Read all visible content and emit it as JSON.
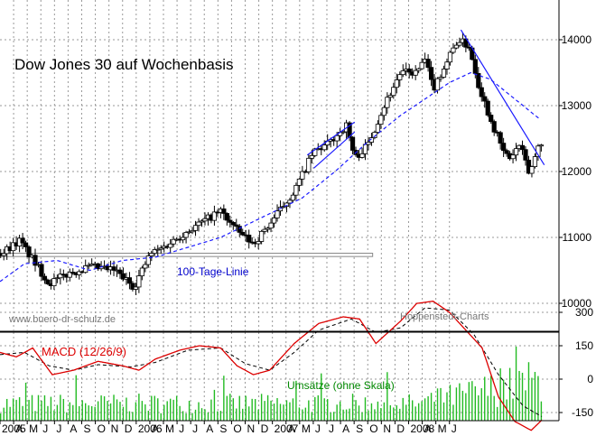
{
  "chart_data": [
    {
      "type": "candlestick",
      "title": "Dow Jones 30 auf Wochenbasis",
      "xlabel": "",
      "ylabel": "",
      "ylim": [
        9750,
        14500
      ],
      "yticks": [
        10000,
        11000,
        12000,
        13000,
        14000
      ],
      "grid": true,
      "x_tick_labels": [
        "2005",
        "A",
        "M",
        "J",
        "J",
        "A",
        "S",
        "O",
        "N",
        "D",
        "2006",
        "A",
        "M",
        "J",
        "J",
        "A",
        "S",
        "O",
        "N",
        "D",
        "2007",
        "A",
        "M",
        "J",
        "J",
        "A",
        "S",
        "O",
        "N",
        "D",
        "2008",
        "A",
        "M",
        "J"
      ],
      "price_anchors": [
        [
          2005.0,
          10750
        ],
        [
          2005.12,
          10950
        ],
        [
          2005.3,
          10300
        ],
        [
          2005.42,
          10450
        ],
        [
          2005.55,
          10550
        ],
        [
          2005.7,
          10500
        ],
        [
          2005.82,
          10250
        ],
        [
          2005.92,
          10750
        ],
        [
          2006.0,
          10850
        ],
        [
          2006.15,
          11100
        ],
        [
          2006.35,
          11400
        ],
        [
          2006.45,
          11100
        ],
        [
          2006.55,
          10900
        ],
        [
          2006.65,
          11200
        ],
        [
          2006.8,
          11700
        ],
        [
          2006.92,
          12300
        ],
        [
          2007.0,
          12400
        ],
        [
          2007.12,
          12700
        ],
        [
          2007.17,
          12200
        ],
        [
          2007.25,
          12400
        ],
        [
          2007.35,
          13000
        ],
        [
          2007.45,
          13500
        ],
        [
          2007.55,
          13500
        ],
        [
          2007.6,
          13700
        ],
        [
          2007.65,
          13250
        ],
        [
          2007.72,
          13600
        ],
        [
          2007.8,
          14000
        ],
        [
          2007.87,
          13900
        ],
        [
          2007.93,
          13300
        ],
        [
          2008.0,
          12800
        ],
        [
          2008.08,
          12300
        ],
        [
          2008.12,
          12200
        ],
        [
          2008.18,
          12400
        ],
        [
          2008.24,
          11950
        ],
        [
          2008.3,
          12450
        ]
      ],
      "sma100_anchors": [
        [
          2005.0,
          10330
        ],
        [
          2005.15,
          10600
        ],
        [
          2005.35,
          10650
        ],
        [
          2005.55,
          10500
        ],
        [
          2005.75,
          10650
        ],
        [
          2005.95,
          10700
        ],
        [
          2006.15,
          10850
        ],
        [
          2006.35,
          11000
        ],
        [
          2006.6,
          11300
        ],
        [
          2006.85,
          11600
        ],
        [
          2007.05,
          12000
        ],
        [
          2007.25,
          12450
        ],
        [
          2007.45,
          12850
        ],
        [
          2007.6,
          13100
        ],
        [
          2007.75,
          13350
        ],
        [
          2007.88,
          13500
        ],
        [
          2008.0,
          13400
        ],
        [
          2008.15,
          13100
        ],
        [
          2008.3,
          12800
        ]
      ],
      "trendlines": [
        {
          "points": [
            [
              2006.88,
              12250
            ],
            [
              2007.17,
              12750
            ]
          ]
        },
        {
          "points": [
            [
              2006.92,
              12050
            ],
            [
              2007.17,
              12600
            ]
          ]
        },
        {
          "points": [
            [
              2007.82,
              14150
            ],
            [
              2008.33,
              12100
            ]
          ]
        }
      ],
      "support_band": {
        "x": [
          2005.0,
          2007.28
        ],
        "y": [
          10710,
          10760
        ]
      },
      "annotations": [
        "100-Tage-Linie",
        "www.buero-dr-schulz.de",
        "Hoppenstedt-Charts"
      ]
    },
    {
      "type": "line",
      "series": [
        {
          "name": "MACD (12/26/9)"
        }
      ],
      "ylim": [
        -260,
        420
      ],
      "yticks": [
        300,
        150,
        0,
        -150
      ],
      "grid": true,
      "macd_anchors": [
        [
          2005.0,
          120
        ],
        [
          2005.1,
          100
        ],
        [
          2005.2,
          140
        ],
        [
          2005.32,
          20
        ],
        [
          2005.45,
          40
        ],
        [
          2005.6,
          80
        ],
        [
          2005.75,
          60
        ],
        [
          2005.85,
          40
        ],
        [
          2005.95,
          90
        ],
        [
          2006.1,
          130
        ],
        [
          2006.22,
          150
        ],
        [
          2006.35,
          140
        ],
        [
          2006.45,
          60
        ],
        [
          2006.55,
          20
        ],
        [
          2006.65,
          40
        ],
        [
          2006.8,
          160
        ],
        [
          2006.95,
          250
        ],
        [
          2007.1,
          280
        ],
        [
          2007.2,
          270
        ],
        [
          2007.3,
          160
        ],
        [
          2007.45,
          260
        ],
        [
          2007.55,
          340
        ],
        [
          2007.65,
          350
        ],
        [
          2007.75,
          300
        ],
        [
          2007.85,
          220
        ],
        [
          2007.95,
          140
        ],
        [
          2008.05,
          -80
        ],
        [
          2008.15,
          -190
        ],
        [
          2008.25,
          -230
        ],
        [
          2008.32,
          -180
        ]
      ],
      "signal_anchors": [
        [
          2005.0,
          110
        ],
        [
          2005.15,
          120
        ],
        [
          2005.3,
          60
        ],
        [
          2005.45,
          40
        ],
        [
          2005.6,
          65
        ],
        [
          2005.8,
          55
        ],
        [
          2005.95,
          75
        ],
        [
          2006.15,
          130
        ],
        [
          2006.35,
          140
        ],
        [
          2006.5,
          70
        ],
        [
          2006.65,
          40
        ],
        [
          2006.8,
          120
        ],
        [
          2006.95,
          220
        ],
        [
          2007.15,
          270
        ],
        [
          2007.3,
          210
        ],
        [
          2007.45,
          230
        ],
        [
          2007.6,
          320
        ],
        [
          2007.75,
          310
        ],
        [
          2007.9,
          200
        ],
        [
          2008.05,
          20
        ],
        [
          2008.2,
          -120
        ],
        [
          2008.32,
          -170
        ]
      ],
      "volume_label": "Umsätze (ohne Skala)"
    }
  ]
}
